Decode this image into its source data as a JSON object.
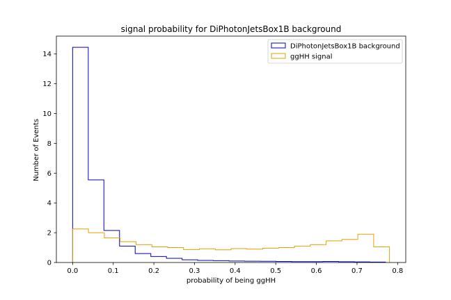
{
  "chart_data": {
    "type": "histogram-step",
    "title": "signal probability for DiPhotonJetsBox1B background",
    "xlabel": "probability of being ggHH",
    "ylabel": "Number of Events",
    "xlim": [
      -0.04,
      0.82
    ],
    "ylim": [
      0,
      15.2
    ],
    "xticks": [
      0.0,
      0.1,
      0.2,
      0.3,
      0.4,
      0.5,
      0.6,
      0.7,
      0.8
    ],
    "xtick_labels": [
      "0.0",
      "0.1",
      "0.2",
      "0.3",
      "0.4",
      "0.5",
      "0.6",
      "0.7",
      "0.8"
    ],
    "yticks": [
      0,
      2,
      4,
      6,
      8,
      10,
      12,
      14
    ],
    "ytick_labels": [
      "0",
      "2",
      "4",
      "6",
      "8",
      "10",
      "12",
      "14"
    ],
    "legend_position": "top-right",
    "series": [
      {
        "name": "DiPhotonJetsBox1B background",
        "color": "#0000bf",
        "edges": [
          0.0,
          0.0385,
          0.077,
          0.1155,
          0.154,
          0.1925,
          0.231,
          0.2695,
          0.308,
          0.3465,
          0.385,
          0.4235,
          0.462,
          0.5005,
          0.539,
          0.5775,
          0.616,
          0.6545,
          0.693,
          0.7315,
          0.77
        ],
        "values": [
          14.45,
          5.55,
          2.15,
          1.1,
          0.6,
          0.4,
          0.28,
          0.18,
          0.14,
          0.12,
          0.1,
          0.09,
          0.08,
          0.07,
          0.06,
          0.06,
          0.07,
          0.05,
          0.04,
          0.03
        ]
      },
      {
        "name": "ggHH signal",
        "color": "#e69f00",
        "edges": [
          0.0,
          0.039,
          0.078,
          0.117,
          0.156,
          0.195,
          0.234,
          0.273,
          0.312,
          0.351,
          0.39,
          0.429,
          0.468,
          0.507,
          0.546,
          0.585,
          0.624,
          0.663,
          0.702,
          0.741,
          0.78
        ],
        "values": [
          2.25,
          2.0,
          1.65,
          1.4,
          1.2,
          1.05,
          1.0,
          0.87,
          0.92,
          0.85,
          0.93,
          0.9,
          0.96,
          1.0,
          1.1,
          1.2,
          1.45,
          1.55,
          1.9,
          1.05
        ]
      }
    ]
  }
}
